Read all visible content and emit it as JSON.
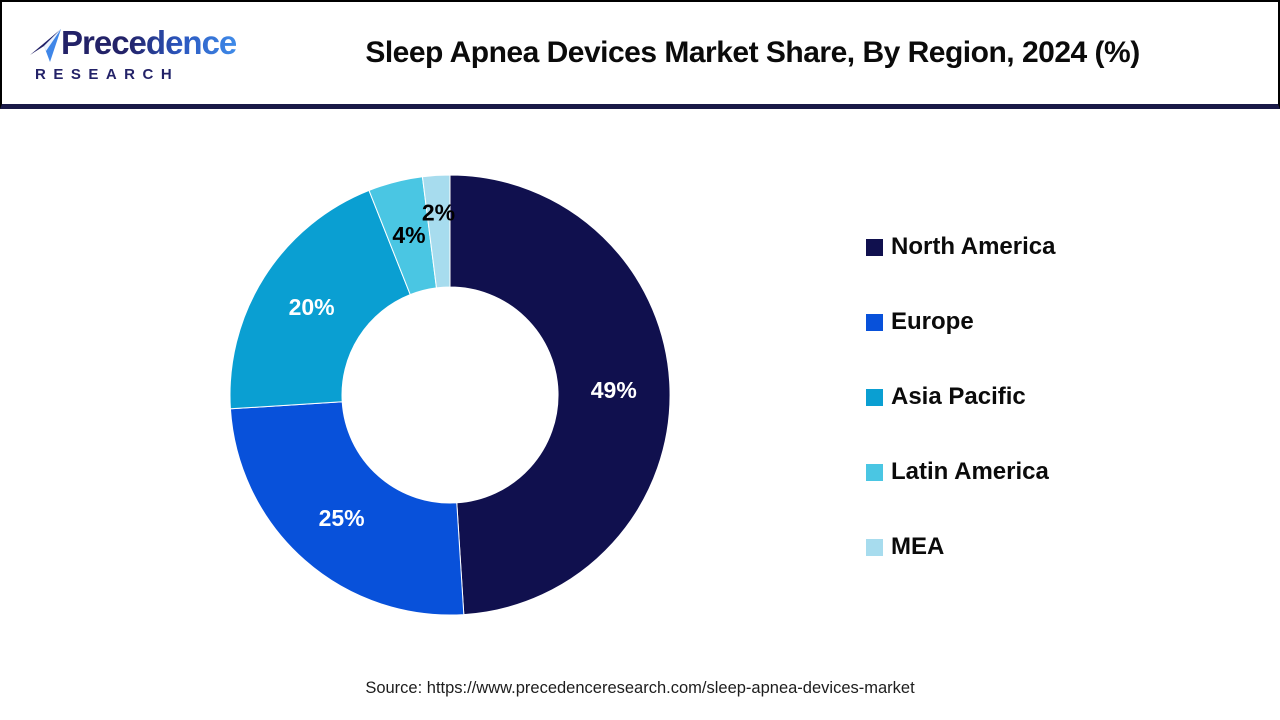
{
  "header": {
    "logo": {
      "brand": "Precedence",
      "sub": "RESEARCH"
    },
    "title": "Sleep Apnea Devices Market Share, By Region, 2024 (%)"
  },
  "chart_data": {
    "type": "pie",
    "subtype": "donut",
    "title": "Sleep Apnea Devices Market Share, By Region, 2024 (%)",
    "start_angle_deg": 0,
    "direction": "clockwise",
    "legend_position": "right",
    "series": [
      {
        "name": "North America",
        "value": 49,
        "label": "49%",
        "color": "#10104E",
        "label_color": "#FFFFFF"
      },
      {
        "name": "Europe",
        "value": 25,
        "label": "25%",
        "color": "#0851DA",
        "label_color": "#FFFFFF"
      },
      {
        "name": "Asia Pacific",
        "value": 20,
        "label": "20%",
        "color": "#0A9FD2",
        "label_color": "#FFFFFF"
      },
      {
        "name": "Latin America",
        "value": 4,
        "label": "4%",
        "color": "#4AC6E3",
        "label_color": "#000000"
      },
      {
        "name": "MEA",
        "value": 2,
        "label": "2%",
        "color": "#A7DCEE",
        "label_color": "#000000"
      }
    ]
  },
  "footer": {
    "source": "Source: https://www.precedenceresearch.com/sleep-apnea-devices-market"
  },
  "colors": {
    "separator": "#191947",
    "header_border": "#000000",
    "background": "#FFFFFF"
  }
}
